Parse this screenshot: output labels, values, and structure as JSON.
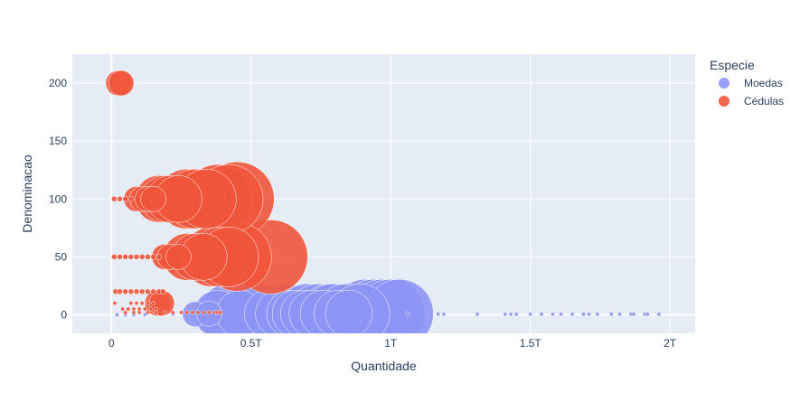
{
  "chart_data": {
    "type": "scatter",
    "subtype": "bubble",
    "title": "",
    "xlabel": "Quantidade",
    "ylabel": "Denominacao",
    "xlim": [
      -0.14,
      2.09
    ],
    "ylim": [
      -16,
      225
    ],
    "x_unit": "trillions",
    "x_ticks": [
      {
        "value": 0,
        "label": "0"
      },
      {
        "value": 0.5,
        "label": "0.5T"
      },
      {
        "value": 1,
        "label": "1T"
      },
      {
        "value": 1.5,
        "label": "1.5T"
      },
      {
        "value": 2,
        "label": "2T"
      }
    ],
    "y_ticks": [
      {
        "value": 0,
        "label": "0"
      },
      {
        "value": 50,
        "label": "50"
      },
      {
        "value": 100,
        "label": "100"
      },
      {
        "value": 150,
        "label": "150"
      },
      {
        "value": 200,
        "label": "200"
      }
    ],
    "grid": true,
    "legend_position": "right",
    "legend_title": "Especie",
    "series": [
      {
        "name": "Moedas",
        "color": "#8c95f5",
        "points": [
          {
            "x": 0.02,
            "y": 0.01,
            "s": 1
          },
          {
            "x": 0.05,
            "y": 0.01,
            "s": 1
          },
          {
            "x": 0.08,
            "y": 0.05,
            "s": 1
          },
          {
            "x": 0.12,
            "y": 0.1,
            "s": 1
          },
          {
            "x": 0.18,
            "y": 0.25,
            "s": 1
          },
          {
            "x": 0.22,
            "y": 0.5,
            "s": 1
          },
          {
            "x": 0.3,
            "y": 0.5,
            "s": 2
          },
          {
            "x": 0.35,
            "y": 1,
            "s": 2
          },
          {
            "x": 0.38,
            "y": 1,
            "s": 3
          },
          {
            "x": 0.42,
            "y": 1,
            "s": 4
          },
          {
            "x": 0.46,
            "y": 1,
            "s": 3
          },
          {
            "x": 0.49,
            "y": 1,
            "s": 4
          },
          {
            "x": 0.52,
            "y": 1,
            "s": 4
          },
          {
            "x": 0.56,
            "y": 1,
            "s": 3
          },
          {
            "x": 0.6,
            "y": 1,
            "s": 3
          },
          {
            "x": 0.62,
            "y": 1,
            "s": 4
          },
          {
            "x": 0.64,
            "y": 1,
            "s": 3
          },
          {
            "x": 0.66,
            "y": 1,
            "s": 3
          },
          {
            "x": 0.69,
            "y": 1,
            "s": 3
          },
          {
            "x": 0.7,
            "y": 1,
            "s": 4
          },
          {
            "x": 0.72,
            "y": 1,
            "s": 3
          },
          {
            "x": 0.74,
            "y": 1,
            "s": 4
          },
          {
            "x": 0.76,
            "y": 1,
            "s": 3
          },
          {
            "x": 0.78,
            "y": 1,
            "s": 4
          },
          {
            "x": 0.79,
            "y": 1,
            "s": 4
          },
          {
            "x": 0.81,
            "y": 1,
            "s": 3
          },
          {
            "x": 0.84,
            "y": 1,
            "s": 4
          },
          {
            "x": 0.85,
            "y": 1,
            "s": 3
          },
          {
            "x": 0.89,
            "y": 1,
            "s": 4
          },
          {
            "x": 0.91,
            "y": 1,
            "s": 5
          },
          {
            "x": 0.94,
            "y": 1,
            "s": 5
          },
          {
            "x": 0.97,
            "y": 1,
            "s": 5
          },
          {
            "x": 1.0,
            "y": 1,
            "s": 5
          },
          {
            "x": 1.03,
            "y": 1,
            "s": 5
          },
          {
            "x": 1.06,
            "y": 1,
            "s": 1
          },
          {
            "x": 1.17,
            "y": 0.5,
            "s": 1
          },
          {
            "x": 1.19,
            "y": 0.5,
            "s": 1
          },
          {
            "x": 1.31,
            "y": 0.5,
            "s": 1
          },
          {
            "x": 1.41,
            "y": 0.5,
            "s": 1
          },
          {
            "x": 1.43,
            "y": 0.5,
            "s": 1
          },
          {
            "x": 1.45,
            "y": 0.5,
            "s": 1
          },
          {
            "x": 1.5,
            "y": 0.5,
            "s": 1
          },
          {
            "x": 1.54,
            "y": 0.5,
            "s": 1
          },
          {
            "x": 1.58,
            "y": 0.5,
            "s": 1
          },
          {
            "x": 1.61,
            "y": 0.5,
            "s": 1
          },
          {
            "x": 1.65,
            "y": 0.5,
            "s": 1
          },
          {
            "x": 1.69,
            "y": 0.5,
            "s": 1
          },
          {
            "x": 1.71,
            "y": 0.5,
            "s": 1
          },
          {
            "x": 1.74,
            "y": 0.5,
            "s": 1
          },
          {
            "x": 1.79,
            "y": 0.5,
            "s": 1
          },
          {
            "x": 1.82,
            "y": 0.5,
            "s": 1
          },
          {
            "x": 1.86,
            "y": 0.5,
            "s": 1
          },
          {
            "x": 1.87,
            "y": 0.5,
            "s": 1
          },
          {
            "x": 1.91,
            "y": 0.5,
            "s": 1
          },
          {
            "x": 1.92,
            "y": 0.5,
            "s": 1
          },
          {
            "x": 1.96,
            "y": 0.5,
            "s": 1
          }
        ]
      },
      {
        "name": "Cédulas",
        "color": "#ef553b",
        "points": [
          {
            "x": 0.012,
            "y": 10,
            "s": 1
          },
          {
            "x": 0.04,
            "y": 5,
            "s": 1
          },
          {
            "x": 0.06,
            "y": 5,
            "s": 1
          },
          {
            "x": 0.08,
            "y": 5,
            "s": 1
          },
          {
            "x": 0.1,
            "y": 5,
            "s": 1
          },
          {
            "x": 0.12,
            "y": 5,
            "s": 1
          },
          {
            "x": 0.14,
            "y": 5,
            "s": 1
          },
          {
            "x": 0.16,
            "y": 5,
            "s": 1
          },
          {
            "x": 0.05,
            "y": 2,
            "s": 1
          },
          {
            "x": 0.08,
            "y": 2,
            "s": 1
          },
          {
            "x": 0.1,
            "y": 2,
            "s": 1
          },
          {
            "x": 0.13,
            "y": 2,
            "s": 1
          },
          {
            "x": 0.16,
            "y": 2,
            "s": 1
          },
          {
            "x": 0.19,
            "y": 2,
            "s": 1
          },
          {
            "x": 0.22,
            "y": 2,
            "s": 1
          },
          {
            "x": 0.25,
            "y": 2,
            "s": 1
          },
          {
            "x": 0.27,
            "y": 2,
            "s": 1
          },
          {
            "x": 0.29,
            "y": 2,
            "s": 1
          },
          {
            "x": 0.31,
            "y": 2,
            "s": 1
          },
          {
            "x": 0.33,
            "y": 2,
            "s": 1
          },
          {
            "x": 0.35,
            "y": 2,
            "s": 1
          },
          {
            "x": 0.37,
            "y": 2,
            "s": 1
          },
          {
            "x": 0.38,
            "y": 2,
            "s": 1
          },
          {
            "x": 0.39,
            "y": 2,
            "s": 1
          },
          {
            "x": 0.07,
            "y": 10,
            "s": 1
          },
          {
            "x": 0.09,
            "y": 10,
            "s": 1
          },
          {
            "x": 0.11,
            "y": 10,
            "s": 1
          },
          {
            "x": 0.13,
            "y": 10,
            "s": 1
          },
          {
            "x": 0.15,
            "y": 10,
            "s": 1
          },
          {
            "x": 0.165,
            "y": 10,
            "s": 2
          },
          {
            "x": 0.18,
            "y": 10,
            "s": 2
          },
          {
            "x": 0.015,
            "y": 20,
            "s": 1
          },
          {
            "x": 0.03,
            "y": 20,
            "s": 1
          },
          {
            "x": 0.05,
            "y": 20,
            "s": 1
          },
          {
            "x": 0.07,
            "y": 20,
            "s": 1
          },
          {
            "x": 0.09,
            "y": 20,
            "s": 1
          },
          {
            "x": 0.11,
            "y": 20,
            "s": 1
          },
          {
            "x": 0.13,
            "y": 20,
            "s": 1
          },
          {
            "x": 0.15,
            "y": 20,
            "s": 1
          },
          {
            "x": 0.17,
            "y": 20,
            "s": 1
          },
          {
            "x": 0.185,
            "y": 20,
            "s": 1
          },
          {
            "x": 0.01,
            "y": 50,
            "s": 1
          },
          {
            "x": 0.03,
            "y": 50,
            "s": 1
          },
          {
            "x": 0.05,
            "y": 50,
            "s": 1
          },
          {
            "x": 0.07,
            "y": 50,
            "s": 1
          },
          {
            "x": 0.09,
            "y": 50,
            "s": 1
          },
          {
            "x": 0.11,
            "y": 50,
            "s": 1
          },
          {
            "x": 0.13,
            "y": 50,
            "s": 1
          },
          {
            "x": 0.15,
            "y": 50,
            "s": 1
          },
          {
            "x": 0.17,
            "y": 50,
            "s": 1
          },
          {
            "x": 0.19,
            "y": 50,
            "s": 2
          },
          {
            "x": 0.21,
            "y": 50,
            "s": 2
          },
          {
            "x": 0.24,
            "y": 50,
            "s": 2
          },
          {
            "x": 0.27,
            "y": 50,
            "s": 3
          },
          {
            "x": 0.3,
            "y": 50,
            "s": 3
          },
          {
            "x": 0.33,
            "y": 50,
            "s": 3
          },
          {
            "x": 0.36,
            "y": 50,
            "s": 4
          },
          {
            "x": 0.39,
            "y": 50,
            "s": 4
          },
          {
            "x": 0.42,
            "y": 50,
            "s": 4
          },
          {
            "x": 0.45,
            "y": 50,
            "s": 5
          },
          {
            "x": 0.57,
            "y": 50,
            "s": 6
          },
          {
            "x": 0.01,
            "y": 100,
            "s": 1
          },
          {
            "x": 0.03,
            "y": 100,
            "s": 1
          },
          {
            "x": 0.05,
            "y": 100,
            "s": 1
          },
          {
            "x": 0.07,
            "y": 100,
            "s": 1
          },
          {
            "x": 0.09,
            "y": 100,
            "s": 2
          },
          {
            "x": 0.11,
            "y": 100,
            "s": 2
          },
          {
            "x": 0.13,
            "y": 100,
            "s": 2
          },
          {
            "x": 0.15,
            "y": 100,
            "s": 2
          },
          {
            "x": 0.17,
            "y": 100,
            "s": 3
          },
          {
            "x": 0.19,
            "y": 100,
            "s": 3
          },
          {
            "x": 0.21,
            "y": 100,
            "s": 3
          },
          {
            "x": 0.24,
            "y": 100,
            "s": 3
          },
          {
            "x": 0.27,
            "y": 100,
            "s": 4
          },
          {
            "x": 0.3,
            "y": 100,
            "s": 4
          },
          {
            "x": 0.34,
            "y": 100,
            "s": 4
          },
          {
            "x": 0.38,
            "y": 100,
            "s": 5
          },
          {
            "x": 0.42,
            "y": 100,
            "s": 5
          },
          {
            "x": 0.45,
            "y": 100,
            "s": 6
          },
          {
            "x": 0.025,
            "y": 200,
            "s": 2
          },
          {
            "x": 0.035,
            "y": 200,
            "s": 2
          }
        ]
      }
    ]
  }
}
